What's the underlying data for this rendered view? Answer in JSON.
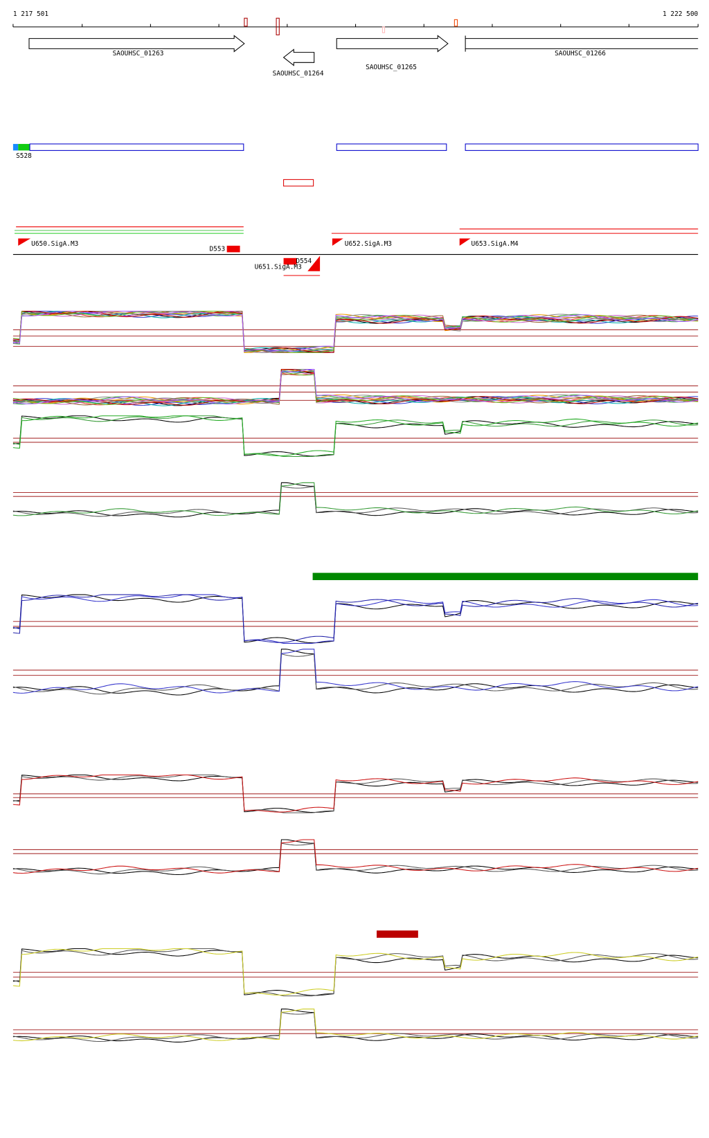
{
  "ruler": {
    "start": "1 217 501",
    "end": "1 222 500"
  },
  "genes": [
    {
      "label": "SAOUHSC_01263"
    },
    {
      "label": "SAOUHSC_01264"
    },
    {
      "label": "SAOUHSC_01265"
    },
    {
      "label": "SAOUHSC_01266"
    }
  ],
  "segments": [
    {
      "label": "S528"
    }
  ],
  "promoters": [
    {
      "label": "U650.SigA.M3"
    },
    {
      "label": "U651.SigA.M3"
    },
    {
      "label": "U652.SigA.M3"
    },
    {
      "label": "U653.SigA.M4"
    }
  ],
  "terminators": [
    {
      "label": "D553"
    },
    {
      "label": "D554"
    }
  ]
}
